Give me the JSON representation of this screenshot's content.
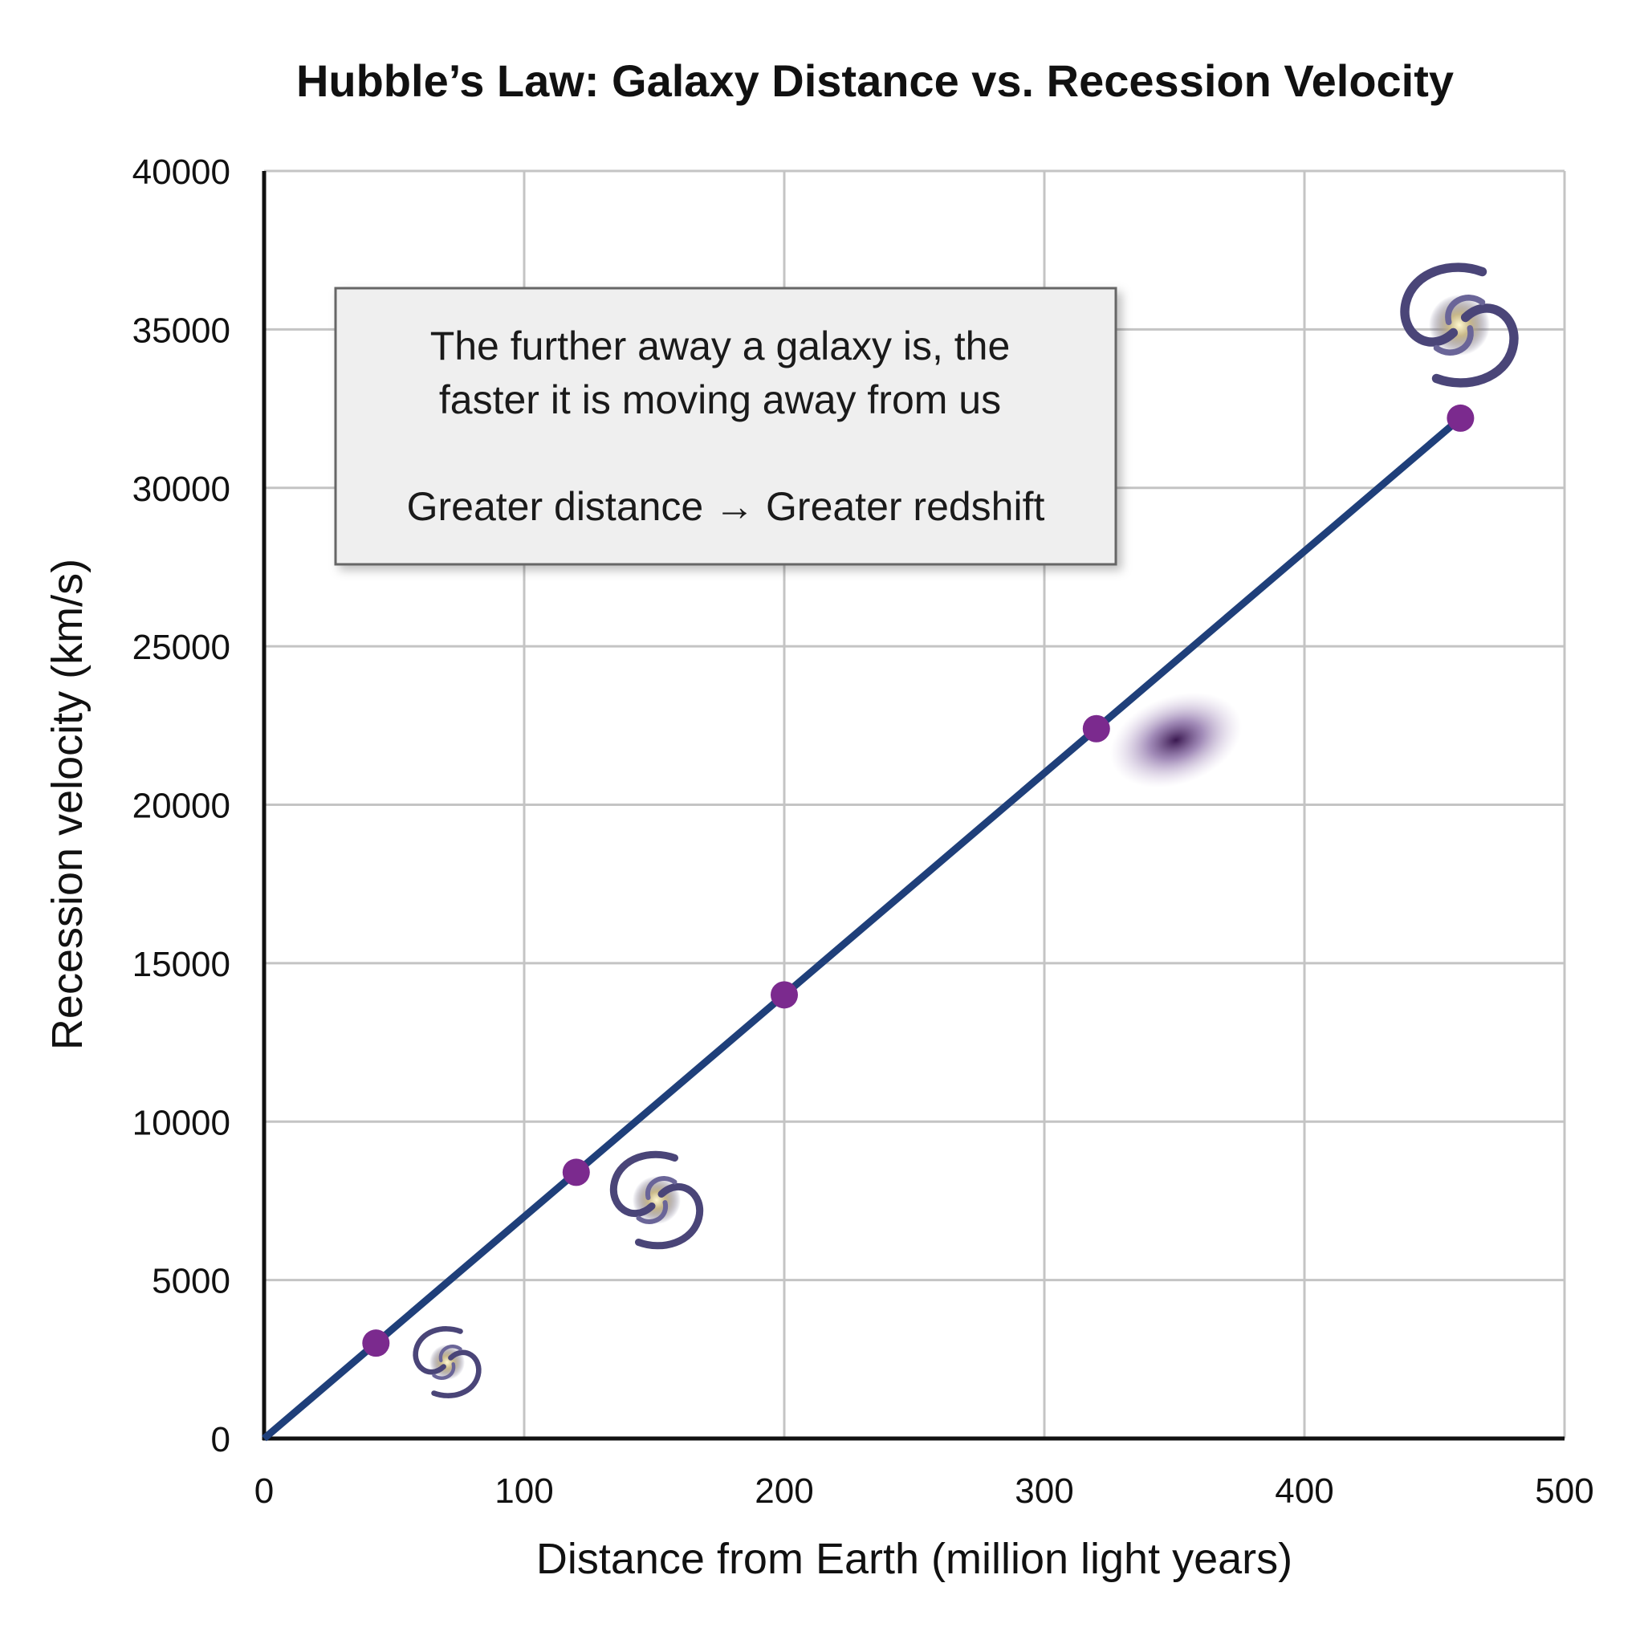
{
  "chart_data": {
    "type": "line",
    "title": "Hubble’s Law: Galaxy Distance vs. Recession Velocity",
    "xlabel": "Distance from Earth (million light years)",
    "ylabel": "Recession velocity (km/s)",
    "xlim": [
      0,
      500
    ],
    "ylim": [
      0,
      40000
    ],
    "xticks": [
      0,
      100,
      200,
      300,
      400,
      500
    ],
    "yticks": [
      0,
      5000,
      10000,
      15000,
      20000,
      25000,
      30000,
      35000,
      40000
    ],
    "grid": true,
    "line": {
      "x": [
        0,
        460
      ],
      "y": [
        0,
        32200
      ],
      "color": "#1f3f7a"
    },
    "points": {
      "x": [
        43,
        120,
        200,
        320,
        460
      ],
      "y": [
        3010,
        8400,
        14000,
        22400,
        32200
      ],
      "color": "#7b2a8e"
    },
    "annotation": {
      "line1": "The further away a galaxy is, the",
      "line2": "faster it is moving away from us",
      "line3": "Greater distance → Greater redshift"
    },
    "decorations": [
      "spiral-galaxy-icon",
      "spiral-galaxy-icon",
      "elliptical-galaxy-icon",
      "spiral-galaxy-icon"
    ]
  }
}
